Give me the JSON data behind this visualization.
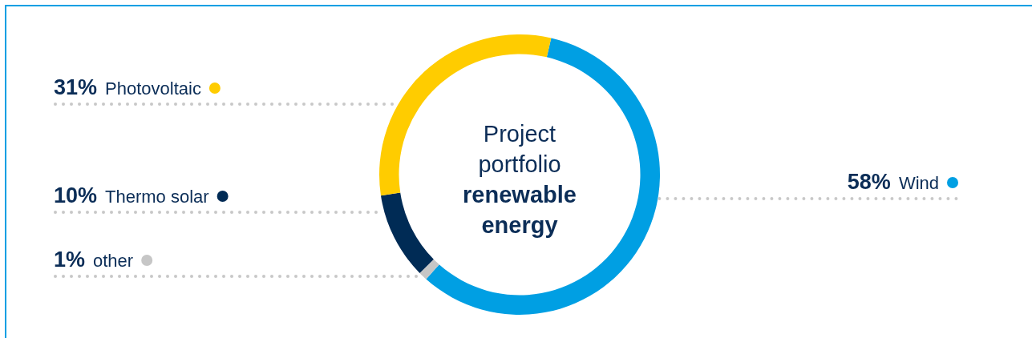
{
  "chart_data": {
    "type": "donut",
    "title": "Project portfolio",
    "subtitle": "renewable energy",
    "categories": [
      "Wind",
      "other",
      "Thermo solar",
      "Photovoltaic"
    ],
    "values": [
      58,
      1,
      10,
      31
    ],
    "colors": [
      "#009fe3",
      "#c6c6c6",
      "#002b55",
      "#ffcc00"
    ],
    "value_labels": [
      "58%",
      "1%",
      "10%",
      "31%"
    ],
    "legend": "left"
  }
}
